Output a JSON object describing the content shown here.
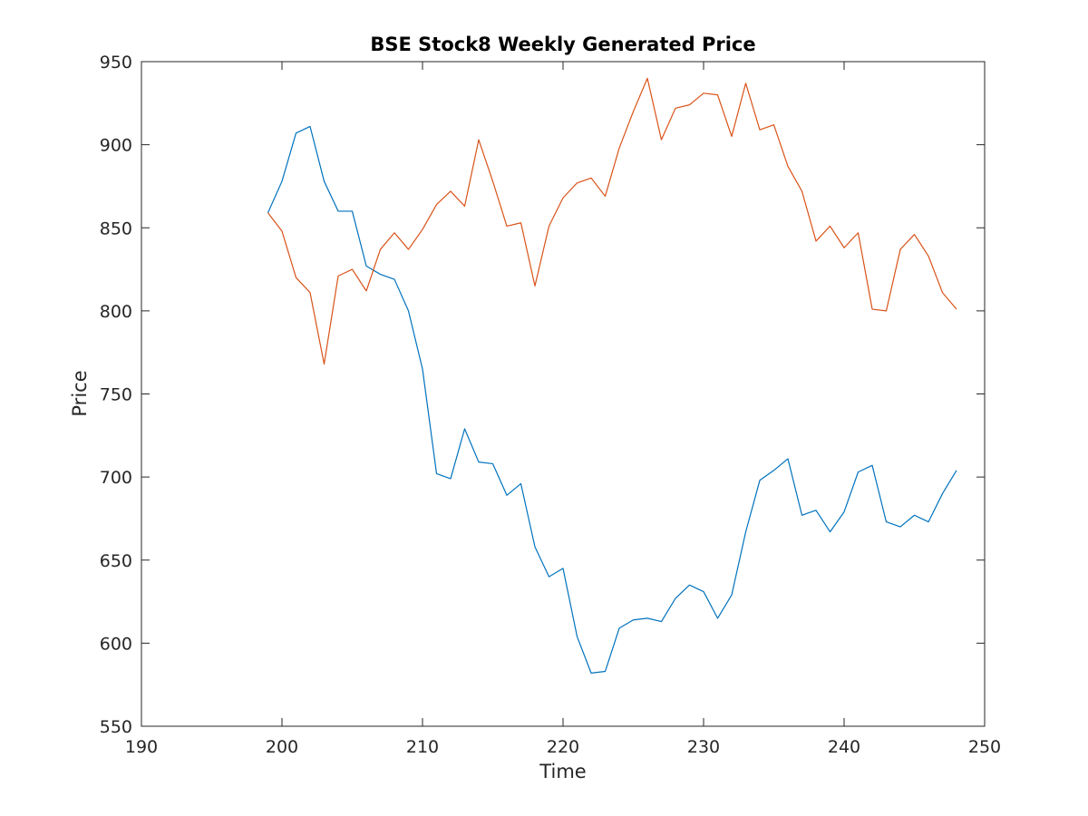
{
  "chart_data": {
    "type": "line",
    "title": "BSE Stock8 Weekly Generated Price",
    "xlabel": "Time",
    "ylabel": "Price",
    "xlim": [
      190,
      250
    ],
    "ylim": [
      550,
      950
    ],
    "xticks": [
      "190",
      "200",
      "210",
      "220",
      "230",
      "240",
      "250"
    ],
    "yticks": [
      "550",
      "600",
      "650",
      "700",
      "750",
      "800",
      "850",
      "900",
      "950"
    ],
    "grid": false,
    "legend": "none",
    "x": [
      199,
      200,
      201,
      202,
      203,
      204,
      205,
      206,
      207,
      208,
      209,
      210,
      211,
      212,
      213,
      214,
      215,
      216,
      217,
      218,
      219,
      220,
      221,
      222,
      223,
      224,
      225,
      226,
      227,
      228,
      229,
      230,
      231,
      232,
      233,
      234,
      235,
      236,
      237,
      238,
      239,
      240,
      241,
      242,
      243,
      244,
      245,
      246,
      247,
      248
    ],
    "series": [
      {
        "color": "#0072bd",
        "values": [
          859,
          878,
          907,
          911,
          878,
          860,
          860,
          827,
          822,
          819,
          800,
          765,
          702,
          699,
          729,
          709,
          708,
          689,
          696,
          658,
          640,
          645,
          604,
          582,
          583,
          609,
          614,
          615,
          613,
          627,
          635,
          631,
          615,
          629,
          667,
          698,
          704,
          711,
          677,
          680,
          667,
          679,
          703,
          707,
          673,
          670,
          677,
          673,
          690,
          704
        ]
      },
      {
        "color": "#d95319",
        "values": [
          859,
          848,
          820,
          811,
          768,
          821,
          825,
          812,
          837,
          847,
          837,
          849,
          864,
          872,
          863,
          903,
          878,
          851,
          853,
          815,
          851,
          868,
          877,
          880,
          869,
          898,
          920,
          940,
          903,
          922,
          924,
          931,
          930,
          905,
          937,
          909,
          912,
          887,
          872,
          842,
          851,
          838,
          847,
          801,
          800,
          837,
          846,
          833,
          811,
          801
        ]
      }
    ]
  }
}
